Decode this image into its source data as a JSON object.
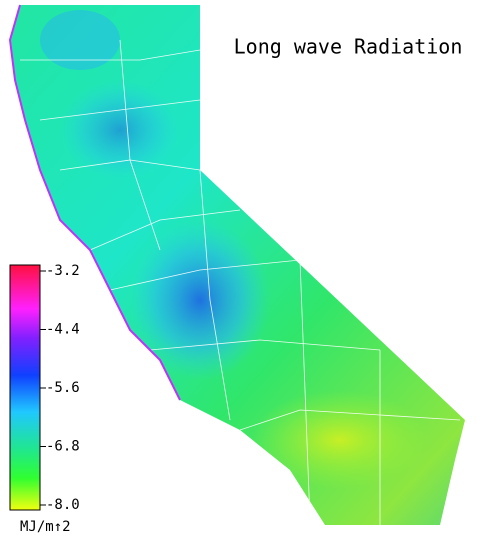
{
  "title": "Long wave Radiation",
  "colorbar": {
    "lim": [
      -8.0,
      -3.2
    ],
    "ticks": [
      -3.2,
      -4.4,
      -5.6,
      -6.8,
      {
        "value": -8.0,
        "label": "-8.0"
      }
    ],
    "unit": "MJ/m↑2"
  }
}
